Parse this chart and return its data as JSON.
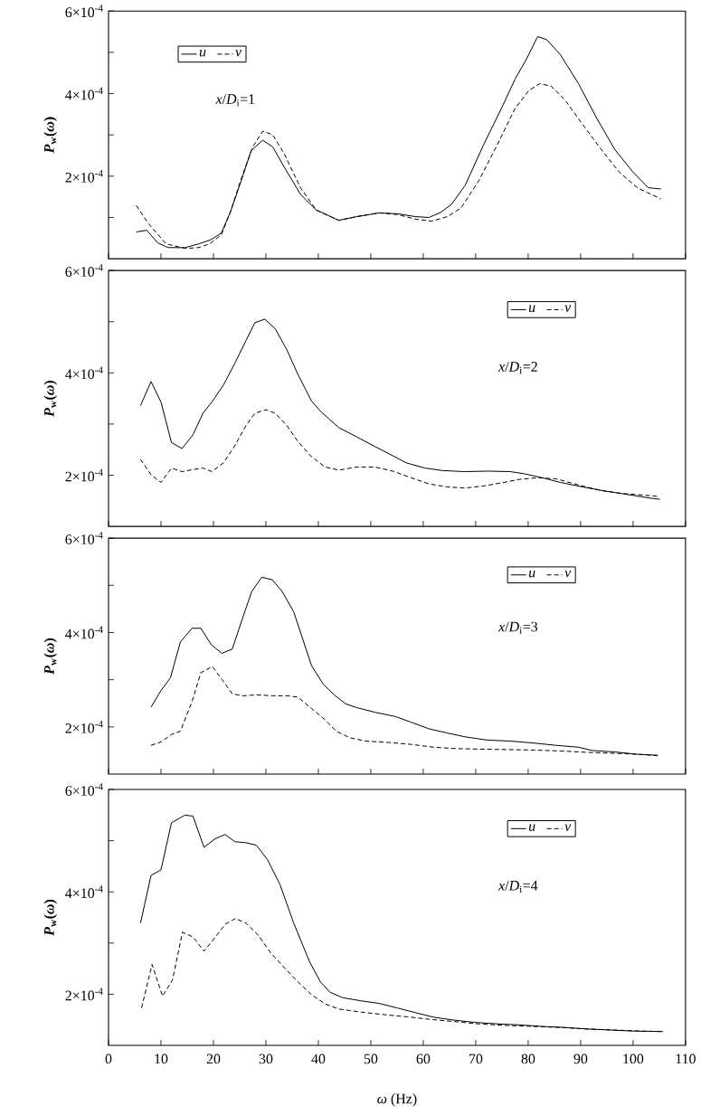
{
  "chart_data": [
    {
      "type": "line",
      "ylabel": "*P*$_{w}$(*ω*)",
      "annotations": [
        "*x*/*D*$_{i}$=1"
      ],
      "legend": "top left",
      "tick_labels": "y",
      "xlim": [
        0,
        110
      ],
      "xticks": [
        {
          "value": 0,
          "label": null
        },
        {
          "value": 10,
          "label": null
        },
        {
          "value": 20,
          "label": null
        },
        {
          "value": 30,
          "label": null
        },
        {
          "value": 40,
          "label": null
        },
        {
          "value": 50,
          "label": null
        },
        {
          "value": 60,
          "label": null
        },
        {
          "value": 70,
          "label": null
        },
        {
          "value": 80,
          "label": null
        },
        {
          "value": 90,
          "label": null
        },
        {
          "value": 100,
          "label": null
        },
        {
          "value": 110,
          "label": null
        }
      ],
      "ylim": [
        0,
        0.0006
      ],
      "yticks": [
        {
          "value": 0.0001,
          "label": null
        },
        {
          "value": 0.0002,
          "label": "2×10$^{-4}$"
        },
        {
          "value": 0.0003,
          "label": null
        },
        {
          "value": 0.0004,
          "label": "4×10$^{-4}$"
        },
        {
          "value": 0.0005,
          "label": null
        },
        {
          "value": 0.0006,
          "label": "6×10$^{-4}$"
        }
      ],
      "series": [
        {
          "name": "u",
          "color": "#000000",
          "line_style": "solid",
          "x": [
            5.3,
            7.3,
            9.4,
            11.4,
            14.6,
            17.2,
            19.5,
            21.5,
            23.2,
            25.3,
            27.2,
            29.4,
            31.3,
            33.5,
            36.6,
            39.6,
            43.9,
            47.3,
            51.6,
            55.1,
            58.5,
            61.1,
            63.3,
            65.4,
            68,
            71.5,
            74.9,
            77.5,
            79.7,
            81.8,
            83.5,
            86.1,
            89.6,
            93,
            96.5,
            99.9,
            102.9,
            105.3
          ],
          "values": [
            6.5e-05,
            6.9e-05,
            3.8e-05,
            2.7e-05,
            2.7e-05,
            3.6e-05,
            4.6e-05,
            6.2e-05,
            0.000112,
            0.000189,
            0.000262,
            0.000287,
            0.000271,
            0.000222,
            0.000156,
            0.000118,
            9.3e-05,
            0.000102,
            0.000111,
            0.000109,
            0.000102,
            0.0001,
            0.000112,
            0.000132,
            0.000178,
            0.000276,
            0.000364,
            0.000435,
            0.000484,
            0.000538,
            0.000531,
            0.000495,
            0.000424,
            0.000342,
            0.000265,
            0.000211,
            0.000172,
            0.000169
          ]
        },
        {
          "name": "v",
          "color": "#000000",
          "line_style": "dashed",
          "x": [
            5.3,
            7.6,
            11,
            14.6,
            17.2,
            19.3,
            21.5,
            23.2,
            25.3,
            27.5,
            29.4,
            31.3,
            33.5,
            36.6,
            39.6,
            43.9,
            47.3,
            51.6,
            55.1,
            58.5,
            61.6,
            64.6,
            67.2,
            70.6,
            74.1,
            77.5,
            80.1,
            82.2,
            84.4,
            87,
            90.4,
            93.9,
            97.3,
            100.8,
            105.3
          ],
          "values": [
            0.000129,
            8.5e-05,
            3.6e-05,
            2.5e-05,
            2.7e-05,
            3.6e-05,
            5.8e-05,
            0.000112,
            0.000194,
            0.000271,
            0.000309,
            0.0003,
            0.000254,
            0.000172,
            0.000118,
            9.3e-05,
            0.000102,
            0.000111,
            0.000107,
            9.6e-05,
            9.1e-05,
            0.000102,
            0.000123,
            0.000189,
            0.000276,
            0.000364,
            0.000407,
            0.000424,
            0.000418,
            0.000385,
            0.000325,
            0.000265,
            0.000211,
            0.000172,
            0.000145
          ]
        }
      ]
    },
    {
      "type": "line",
      "ylabel": "*P*$_{w}$(*ω*)",
      "annotations": [
        "*x*/*D*$_{i}$=2"
      ],
      "legend": "top right",
      "tick_labels": "y",
      "xlim": [
        0,
        110
      ],
      "xticks": [
        {
          "value": 0,
          "label": null
        },
        {
          "value": 10,
          "label": null
        },
        {
          "value": 20,
          "label": null
        },
        {
          "value": 30,
          "label": null
        },
        {
          "value": 40,
          "label": null
        },
        {
          "value": 50,
          "label": null
        },
        {
          "value": 60,
          "label": null
        },
        {
          "value": 70,
          "label": null
        },
        {
          "value": 80,
          "label": null
        },
        {
          "value": 90,
          "label": null
        },
        {
          "value": 100,
          "label": null
        },
        {
          "value": 110,
          "label": null
        }
      ],
      "ylim": [
        0.0001,
        0.0006
      ],
      "yticks": [
        {
          "value": 0.0002,
          "label": "2×10$^{-4}$"
        },
        {
          "value": 0.0003,
          "label": null
        },
        {
          "value": 0.0004,
          "label": "4×10$^{-4}$"
        },
        {
          "value": 0.0005,
          "label": null
        },
        {
          "value": 0.0006,
          "label": "6×10$^{-4}$"
        }
      ],
      "series": [
        {
          "name": "u",
          "color": "#000000",
          "line_style": "solid",
          "x": [
            6.1,
            8.1,
            10,
            12,
            14,
            16.1,
            18,
            19.7,
            21.9,
            24.1,
            26.2,
            27.9,
            29.8,
            31.8,
            34,
            36.1,
            38.7,
            40.4,
            43.9,
            47.3,
            50.8,
            54.2,
            56.8,
            60.3,
            63.7,
            68,
            72.3,
            76.6,
            79.2,
            82.7,
            86.1,
            90.4,
            94.7,
            99.1,
            103.4,
            105.1
          ],
          "values": [
            0.000336,
            0.000383,
            0.000343,
            0.000264,
            0.000252,
            0.000279,
            0.000321,
            0.000343,
            0.000376,
            0.000419,
            0.000463,
            0.000498,
            0.000505,
            0.000486,
            0.000445,
            0.000397,
            0.000345,
            0.000325,
            0.000293,
            0.000275,
            0.000256,
            0.000238,
            0.000224,
            0.000214,
            0.000209,
            0.000207,
            0.000208,
            0.000207,
            0.000203,
            0.000195,
            0.000186,
            0.000177,
            0.000169,
            0.000162,
            0.000155,
            0.000153
          ]
        },
        {
          "name": "v",
          "color": "#000000",
          "line_style": "dashed",
          "x": [
            6.1,
            8.1,
            10,
            12,
            14,
            16.1,
            18,
            19.7,
            21.9,
            24.1,
            26.2,
            27.9,
            30,
            31.8,
            34,
            36.1,
            38.7,
            41.3,
            43.9,
            47.3,
            50.8,
            54.2,
            57.7,
            61.1,
            64.6,
            68,
            71.5,
            74.9,
            78.4,
            81.8,
            85.3,
            89.6,
            93.9,
            98.2,
            103.4,
            105.1
          ],
          "values": [
            0.000231,
            0.000201,
            0.000186,
            0.000214,
            0.000207,
            0.000211,
            0.000214,
            0.000207,
            0.000224,
            0.000258,
            0.000297,
            0.000321,
            0.000328,
            0.000321,
            0.000297,
            0.000266,
            0.000236,
            0.000216,
            0.00021,
            0.000216,
            0.000216,
            0.000208,
            0.000195,
            0.000183,
            0.000177,
            0.000175,
            0.000179,
            0.000185,
            0.000192,
            0.000195,
            0.000193,
            0.000181,
            0.00017,
            0.000164,
            0.00016,
            0.000158
          ]
        }
      ]
    },
    {
      "type": "line",
      "ylabel": "*P*$_{w}$(*ω*)",
      "annotations": [
        "*x*/*D*$_{i}$=3"
      ],
      "legend": "top right",
      "tick_labels": "y",
      "xlim": [
        0,
        110
      ],
      "xticks": [
        {
          "value": 0,
          "label": null
        },
        {
          "value": 10,
          "label": null
        },
        {
          "value": 20,
          "label": null
        },
        {
          "value": 30,
          "label": null
        },
        {
          "value": 40,
          "label": null
        },
        {
          "value": 50,
          "label": null
        },
        {
          "value": 60,
          "label": null
        },
        {
          "value": 70,
          "label": null
        },
        {
          "value": 80,
          "label": null
        },
        {
          "value": 90,
          "label": null
        },
        {
          "value": 100,
          "label": null
        },
        {
          "value": 110,
          "label": null
        }
      ],
      "ylim": [
        0.0001,
        0.0006
      ],
      "yticks": [
        {
          "value": 0.0002,
          "label": "2×10$^{-4}$"
        },
        {
          "value": 0.0003,
          "label": null
        },
        {
          "value": 0.0004,
          "label": "4×10$^{-4}$"
        },
        {
          "value": 0.0005,
          "label": null
        },
        {
          "value": 0.0006,
          "label": "6×10$^{-4}$"
        }
      ],
      "series": [
        {
          "name": "u",
          "color": "#000000",
          "line_style": "solid",
          "x": [
            8.1,
            10,
            11.8,
            13.7,
            15.9,
            17.6,
            19.6,
            21.6,
            23.6,
            25.3,
            27.3,
            29.2,
            31.2,
            33.1,
            35.3,
            38.7,
            40.9,
            43,
            45.2,
            47.3,
            50.8,
            54.7,
            57.7,
            61.1,
            64.6,
            68,
            72.3,
            76.6,
            80.9,
            85.3,
            89.6,
            92.2,
            96.5,
            100.8,
            104.7
          ],
          "values": [
            0.000242,
            0.000277,
            0.000304,
            0.00038,
            0.000409,
            0.000409,
            0.000374,
            0.000356,
            0.000365,
            0.000422,
            0.000487,
            0.000517,
            0.000512,
            0.000487,
            0.000444,
            0.00033,
            0.000291,
            0.000268,
            0.000249,
            0.000241,
            0.000231,
            0.000222,
            0.00021,
            0.000196,
            0.000187,
            0.000179,
            0.000172,
            0.00017,
            0.000166,
            0.000161,
            0.000157,
            0.00015,
            0.000147,
            0.000142,
            0.00014
          ]
        },
        {
          "name": "v",
          "color": "#000000",
          "line_style": "dashed",
          "x": [
            8.1,
            10,
            12,
            13.7,
            15.9,
            17.6,
            19.8,
            21.6,
            23.6,
            25.7,
            28.3,
            31.3,
            34.3,
            36.1,
            38.7,
            41.3,
            43.4,
            46,
            49,
            53.4,
            57.7,
            62,
            66.4,
            70.7,
            75.9,
            81.1,
            86.2,
            91.4,
            96.6,
            100.9,
            104.7
          ],
          "values": [
            0.000161,
            0.000168,
            0.000184,
            0.000191,
            0.000253,
            0.000315,
            0.000328,
            0.000301,
            0.00027,
            0.000266,
            0.000268,
            0.000266,
            0.000266,
            0.000263,
            0.000239,
            0.000215,
            0.000191,
            0.000177,
            0.00017,
            0.000167,
            0.000163,
            0.000157,
            0.000154,
            0.000153,
            0.000152,
            0.000151,
            0.000149,
            0.000146,
            0.000144,
            0.000142,
            0.000139
          ]
        }
      ]
    },
    {
      "type": "line",
      "ylabel": "*P*$_{w}$(*ω*)",
      "xlabel": "*ω* (Hz)",
      "annotations": [
        "*x*/*D*$_{i}$=4"
      ],
      "legend": "top right",
      "xlim": [
        0,
        110
      ],
      "xticks": [
        0,
        10,
        20,
        30,
        40,
        50,
        60,
        70,
        80,
        90,
        100,
        110
      ],
      "ylim": [
        0.0001,
        0.0006
      ],
      "yticks": [
        {
          "value": 0.0002,
          "label": "2×10$^{-4}$"
        },
        {
          "value": 0.0003,
          "label": null
        },
        {
          "value": 0.0004,
          "label": "4×10$^{-4}$"
        },
        {
          "value": 0.0005,
          "label": null
        },
        {
          "value": 0.0006,
          "label": "6×10$^{-4}$"
        }
      ],
      "series": [
        {
          "name": "u",
          "color": "#000000",
          "line_style": "solid",
          "x": [
            6.1,
            8.1,
            10,
            12,
            14.6,
            16.1,
            18.2,
            20.2,
            22.2,
            24.1,
            26.2,
            28.2,
            30.3,
            32.7,
            35.3,
            38.3,
            40.4,
            42.2,
            44.7,
            48.2,
            51.6,
            55.1,
            58.5,
            62,
            65.4,
            69.7,
            74.1,
            78.4,
            82.7,
            87,
            91.3,
            95.6,
            99.9,
            105.7
          ],
          "values": [
            0.000339,
            0.000432,
            0.000443,
            0.000535,
            0.00055,
            0.000548,
            0.000487,
            0.000503,
            0.000512,
            0.000498,
            0.000496,
            0.000491,
            0.000463,
            0.000414,
            0.000339,
            0.000264,
            0.000224,
            0.000204,
            0.000193,
            0.000187,
            0.000182,
            0.000173,
            0.000164,
            0.000155,
            0.00015,
            0.000145,
            0.000142,
            0.00014,
            0.000137,
            0.000135,
            0.000132,
            0.00013,
            0.000128,
            0.000127
          ]
        },
        {
          "name": "v",
          "color": "#000000",
          "line_style": "dashed",
          "x": [
            6.3,
            8.3,
            10.3,
            12.2,
            14.1,
            16.1,
            18.2,
            20.4,
            22.3,
            24.2,
            26.2,
            28.4,
            30.9,
            33.5,
            36.1,
            38.7,
            41.3,
            43.9,
            48.2,
            52.5,
            56.8,
            61.1,
            65.4,
            70.6,
            75.7,
            80.9,
            86.1,
            91.3,
            96.5,
            101.6,
            105.7
          ],
          "values": [
            0.000173,
            0.000258,
            0.000196,
            0.000228,
            0.000321,
            0.000312,
            0.000284,
            0.000312,
            0.000337,
            0.000348,
            0.000339,
            0.000317,
            0.000281,
            0.000252,
            0.000224,
            0.000199,
            0.000181,
            0.000171,
            0.000165,
            0.00016,
            0.000156,
            0.000151,
            0.000147,
            0.000142,
            0.000139,
            0.000137,
            0.000135,
            0.000132,
            0.00013,
            0.000128,
            0.000127
          ]
        }
      ]
    }
  ]
}
